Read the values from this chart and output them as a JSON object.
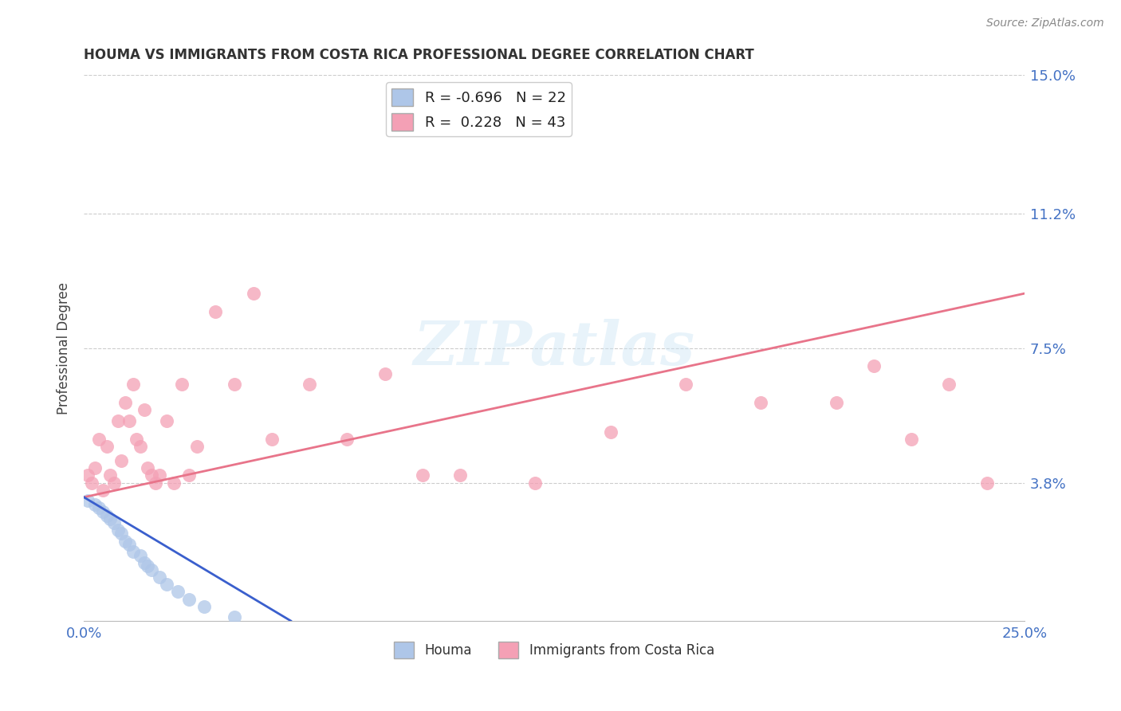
{
  "title": "HOUMA VS IMMIGRANTS FROM COSTA RICA PROFESSIONAL DEGREE CORRELATION CHART",
  "source": "Source: ZipAtlas.com",
  "ylabel": "Professional Degree",
  "xlim": [
    0.0,
    0.25
  ],
  "ylim": [
    0.0,
    0.15
  ],
  "houma_R": -0.696,
  "houma_N": 22,
  "cr_R": 0.228,
  "cr_N": 43,
  "houma_color": "#aec6e8",
  "cr_color": "#f4a0b5",
  "houma_line_color": "#3a5fcd",
  "cr_line_color": "#e8748a",
  "houma_x": [
    0.001,
    0.003,
    0.004,
    0.005,
    0.006,
    0.007,
    0.008,
    0.009,
    0.01,
    0.011,
    0.012,
    0.013,
    0.015,
    0.016,
    0.017,
    0.018,
    0.02,
    0.022,
    0.025,
    0.028,
    0.032,
    0.04
  ],
  "houma_y": [
    0.033,
    0.032,
    0.031,
    0.03,
    0.029,
    0.028,
    0.027,
    0.025,
    0.024,
    0.022,
    0.021,
    0.019,
    0.018,
    0.016,
    0.015,
    0.014,
    0.012,
    0.01,
    0.008,
    0.006,
    0.004,
    0.001
  ],
  "cr_x": [
    0.001,
    0.002,
    0.003,
    0.004,
    0.005,
    0.006,
    0.007,
    0.008,
    0.009,
    0.01,
    0.011,
    0.012,
    0.013,
    0.014,
    0.015,
    0.016,
    0.017,
    0.018,
    0.019,
    0.02,
    0.022,
    0.024,
    0.026,
    0.028,
    0.03,
    0.035,
    0.04,
    0.045,
    0.05,
    0.06,
    0.07,
    0.08,
    0.09,
    0.1,
    0.12,
    0.14,
    0.16,
    0.18,
    0.2,
    0.21,
    0.22,
    0.23,
    0.24
  ],
  "cr_y": [
    0.04,
    0.038,
    0.042,
    0.05,
    0.036,
    0.048,
    0.04,
    0.038,
    0.055,
    0.044,
    0.06,
    0.055,
    0.065,
    0.05,
    0.048,
    0.058,
    0.042,
    0.04,
    0.038,
    0.04,
    0.055,
    0.038,
    0.065,
    0.04,
    0.048,
    0.085,
    0.065,
    0.09,
    0.05,
    0.065,
    0.05,
    0.068,
    0.04,
    0.04,
    0.038,
    0.052,
    0.065,
    0.06,
    0.06,
    0.07,
    0.05,
    0.065,
    0.038
  ],
  "cr_line_x0": 0.0,
  "cr_line_y0": 0.034,
  "cr_line_x1": 0.25,
  "cr_line_y1": 0.09,
  "houma_line_x0": 0.0,
  "houma_line_y0": 0.034,
  "houma_line_x1": 0.055,
  "houma_line_y1": 0.0
}
